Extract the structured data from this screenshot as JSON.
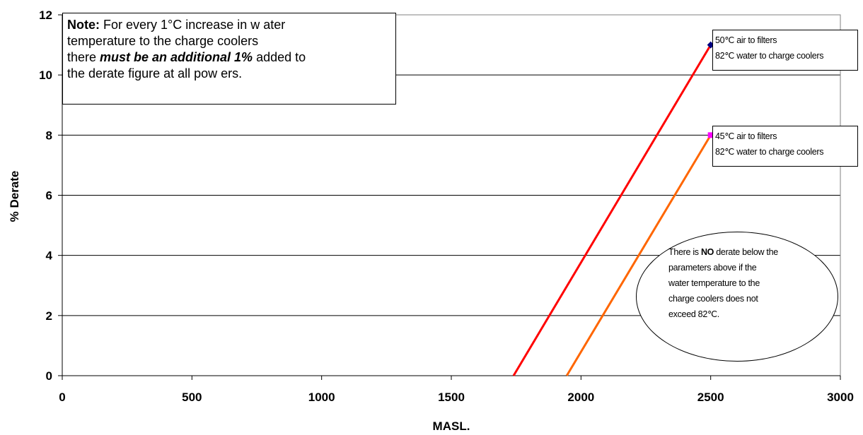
{
  "chart_data": {
    "type": "line",
    "xlabel": "MASL.",
    "ylabel": "% Derate",
    "xlim": [
      0,
      3000
    ],
    "ylim": [
      0,
      12
    ],
    "x_ticks": [
      "0",
      "500",
      "1000",
      "1500",
      "2000",
      "2500",
      "3000"
    ],
    "y_ticks": [
      "0",
      "2",
      "4",
      "6",
      "8",
      "10",
      "12"
    ],
    "grid": "horizontal",
    "series": [
      {
        "color": "#ff0000",
        "marker_color": "#000080",
        "x": [
          1740,
          2500
        ],
        "y": [
          0,
          11
        ]
      },
      {
        "color": "#ff6600",
        "marker_color": "#ff00ff",
        "x": [
          1945,
          2500
        ],
        "y": [
          0,
          8
        ]
      }
    ]
  },
  "note": {
    "lead": "Note:",
    "line1": " For every 1°C increase in w ater",
    "line2": "temperature to the charge coolers",
    "line3_pre": "there ",
    "line3_em": "must be an additional  1%",
    "line3_post": " added to",
    "line4": "the derate figure at all pow ers."
  },
  "callouts": [
    {
      "line1": "50℃ air to filters",
      "line2": "82℃ water to charge coolers"
    },
    {
      "line1": "45℃ air to filters",
      "line2": "82℃ water to charge coolers"
    }
  ],
  "ellipse_note": {
    "pre": "There is ",
    "bold": "NO",
    "line1_post": " derate below the",
    "line2": "parameters above if the",
    "line3": "water temperature to the",
    "line4": "charge coolers does not",
    "line5": "exceed 82℃."
  }
}
